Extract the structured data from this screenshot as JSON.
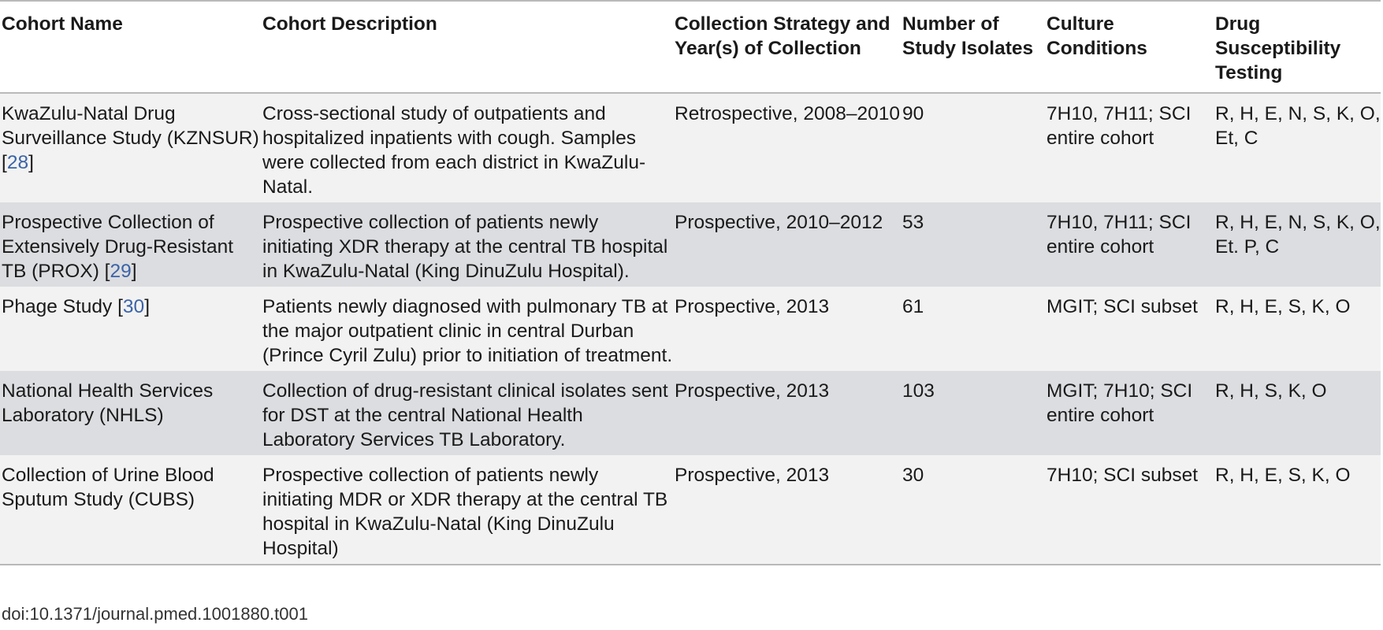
{
  "table": {
    "headers": [
      "Cohort Name",
      "Cohort Description",
      "Collection Strategy and Year(s) of Collection",
      "Number of Study Isolates",
      "Culture Conditions",
      "Drug Susceptibility Testing"
    ],
    "rows": [
      {
        "name": "KwaZulu-Natal Drug Surveillance Study (KZNSUR) [",
        "ref": "28",
        "name_end": "]",
        "description": "Cross-sectional study of outpatients and hospitalized inpatients with cough. Samples were collected from each district in KwaZulu-Natal.",
        "strategy": "Retrospective, 2008–2010",
        "isolates": "90",
        "culture": "7H10, 7H11; SCI entire cohort",
        "dst": "R, H, E, N, S, K, O, Et, C"
      },
      {
        "name": "Prospective Collection of Extensively Drug-Resistant TB (PROX) [",
        "ref": "29",
        "name_end": "]",
        "description": "Prospective collection of patients newly initiating XDR therapy at the central TB hospital in KwaZulu-Natal (King DinuZulu Hospital).",
        "strategy": "Prospective, 2010–2012",
        "isolates": "53",
        "culture": "7H10, 7H11; SCI entire cohort",
        "dst": "R, H, E, N, S, K, O, Et. P, C"
      },
      {
        "name": "Phage Study [",
        "ref": "30",
        "name_end": "]",
        "description": "Patients newly diagnosed with pulmonary TB at the major outpatient clinic in central Durban (Prince Cyril Zulu) prior to initiation of treatment.",
        "strategy": "Prospective, 2013",
        "isolates": "61",
        "culture": "MGIT; SCI subset",
        "dst": "R, H, E, S, K, O"
      },
      {
        "name": "National Health Services Laboratory (NHLS)",
        "ref": "",
        "name_end": "",
        "description": "Collection of drug-resistant clinical isolates sent for DST at the central National Health Laboratory Services TB Laboratory.",
        "strategy": "Prospective, 2013",
        "isolates": "103",
        "culture": "MGIT; 7H10; SCI entire cohort",
        "dst": "R, H, S, K, O"
      },
      {
        "name": "Collection of Urine Blood Sputum Study (CUBS)",
        "ref": "",
        "name_end": "",
        "description": "Prospective collection of patients newly initiating MDR or XDR therapy at the central TB hospital in KwaZulu-Natal (King DinuZulu Hospital)",
        "strategy": "Prospective, 2013",
        "isolates": "30",
        "culture": "7H10; SCI subset",
        "dst": "R, H, E, S, K, O"
      }
    ]
  },
  "doi": "doi:10.1371/journal.pmed.1001880.t001"
}
